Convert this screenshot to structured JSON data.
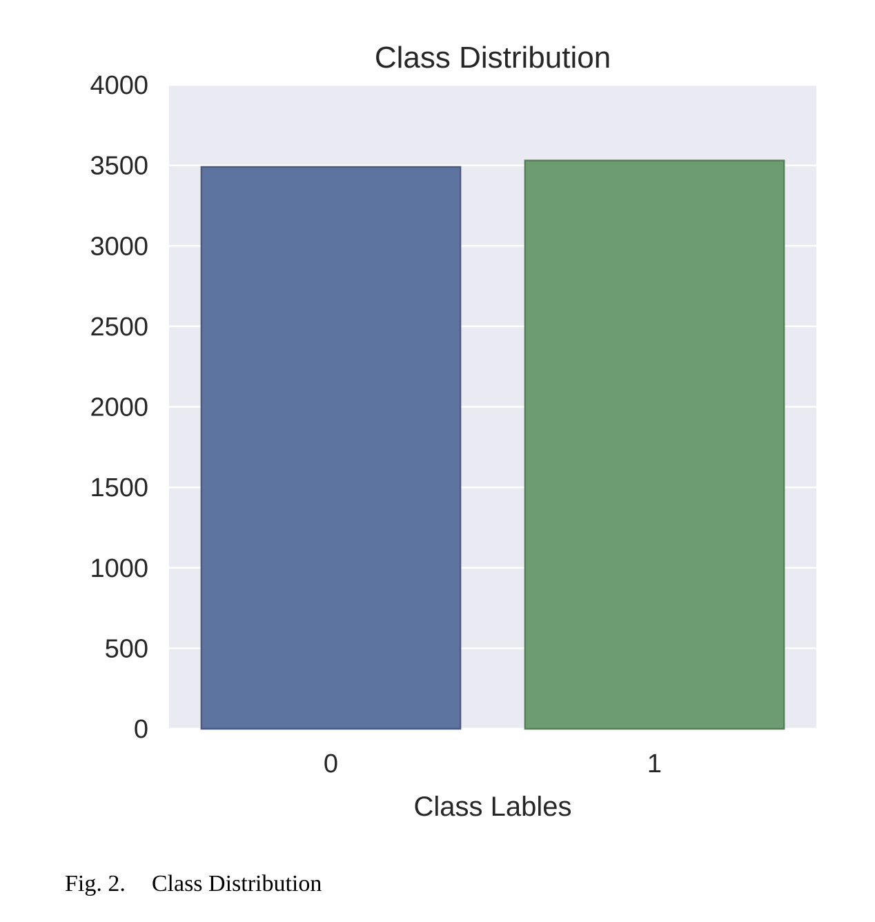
{
  "chart_data": {
    "type": "bar",
    "title": "Class Distribution",
    "xlabel": "Class Lables",
    "ylabel": "",
    "categories": [
      "0",
      "1"
    ],
    "values": [
      3490,
      3530
    ],
    "ylim": [
      0,
      4000
    ],
    "yticks": [
      0,
      500,
      1000,
      1500,
      2000,
      2500,
      3000,
      3500,
      4000
    ],
    "grid": true,
    "colors": [
      "#5e74a0",
      "#6d9c71"
    ],
    "edge_colors": [
      "#4a5a80",
      "#577d5a"
    ],
    "background_color": "#eaeaf2"
  },
  "caption": {
    "number": "Fig. 2.",
    "text": "Class Distribution"
  }
}
